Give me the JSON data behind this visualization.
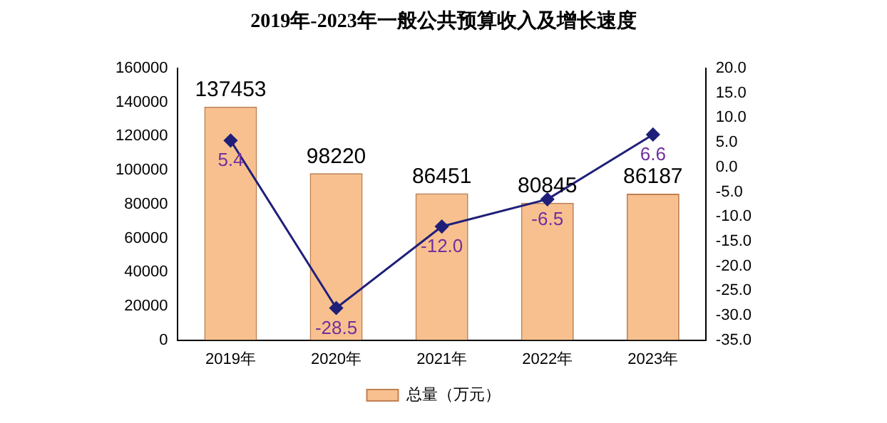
{
  "chart_data": {
    "type": "bar",
    "title": "2019年-2023年一般公共预算收入及增长速度",
    "categories": [
      "2019年",
      "2020年",
      "2021年",
      "2022年",
      "2023年"
    ],
    "series": [
      {
        "name": "总量（万元）",
        "color": "#f8c08e",
        "values": [
          137453,
          98220,
          86451,
          80845,
          86187
        ],
        "value_labels": [
          "137453",
          "98220",
          "86451",
          "80845",
          "86187"
        ]
      },
      {
        "type": "line",
        "axis": "y2",
        "color": "#1f1f7a",
        "marker": "diamond",
        "values": [
          5.4,
          -28.5,
          -12.0,
          -6.5,
          6.6
        ],
        "value_labels": [
          "5.4",
          "-28.5",
          "-12.0",
          "-6.5",
          "6.6"
        ]
      }
    ],
    "ylim": [
      0,
      160000
    ],
    "yticks": [
      0,
      20000,
      40000,
      60000,
      80000,
      100000,
      120000,
      140000,
      160000
    ],
    "y2lim": [
      -35,
      20
    ],
    "y2ticks": [
      {
        "value": -35,
        "label": "-35.0"
      },
      {
        "value": -30,
        "label": "-30.0"
      },
      {
        "value": -25,
        "label": "-25.0"
      },
      {
        "value": -20,
        "label": "-20.0"
      },
      {
        "value": -15,
        "label": "-15.0"
      },
      {
        "value": -10,
        "label": "-10.0"
      },
      {
        "value": -5,
        "label": "-5.0"
      },
      {
        "value": 0,
        "label": "0.0"
      },
      {
        "value": 5,
        "label": "5.0"
      },
      {
        "value": 10,
        "label": "10.0"
      },
      {
        "value": 15,
        "label": "15.0"
      },
      {
        "value": 20,
        "label": "20.0"
      }
    ],
    "legend": "bottom",
    "grid": false
  }
}
